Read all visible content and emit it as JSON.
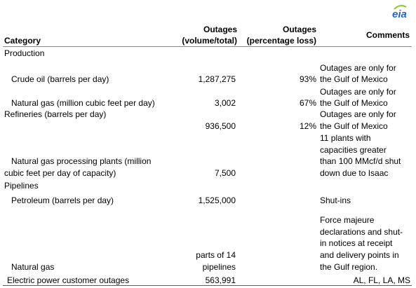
{
  "brand": {
    "logo_text": "eia"
  },
  "headers": {
    "category": "Category",
    "volume_line1": "Outages",
    "volume_line2": "(volume/total)",
    "percent_line1": "Outages",
    "percent_line2": "(percentage loss)",
    "comments": "Comments"
  },
  "sections": {
    "production": "Production",
    "refineries": "Refineries (barrels per day)",
    "pipelines": "Pipelines"
  },
  "rows": {
    "crude_oil": {
      "label": "Crude oil (barrels per day)",
      "volume": "1,287,275",
      "percent": "93%",
      "comment_line1": "Outages are only for",
      "comment_line2": "the Gulf of Mexico"
    },
    "natural_gas_production": {
      "label": "Natural gas (million cubic feet per day)",
      "volume": "3,002",
      "percent": "67%",
      "comment_line1": "Outages are only for",
      "comment_line2": "the Gulf of Mexico"
    },
    "refineries": {
      "volume": "936,500",
      "percent": "12%",
      "comment_line1": "Outages are only for",
      "comment_line2": "the Gulf of Mexico"
    },
    "gas_processing": {
      "label_line1": "Natural gas processing plants (million",
      "label_line2": "cubic feet per day of capacity)",
      "volume": "7,500",
      "comment_line1": "11 plants with",
      "comment_line2": "capacities greater",
      "comment_line3": "than 100 MMcf/d shut",
      "comment_line4": "down due to Isaac"
    },
    "petroleum": {
      "label": "Petroleum (barrels per day)",
      "volume": "1,525,000",
      "comment": "Shut-ins"
    },
    "natural_gas_pipelines": {
      "label": "Natural gas",
      "volume_line1": "parts of 14",
      "volume_line2": "pipelines",
      "comment_line1": "Force majeure",
      "comment_line2": "declarations and shut-",
      "comment_line3": "in notices at receipt",
      "comment_line4": "and delivery points in",
      "comment_line5": "the Gulf region."
    },
    "electric_power": {
      "label": "Electric power customer outages",
      "volume": "563,991",
      "comment": "AL, FL, LA, MS"
    }
  },
  "colors": {
    "logo_blue": "#2a63b8",
    "logo_green": "#8cc63f",
    "rule_gray": "#888888"
  }
}
